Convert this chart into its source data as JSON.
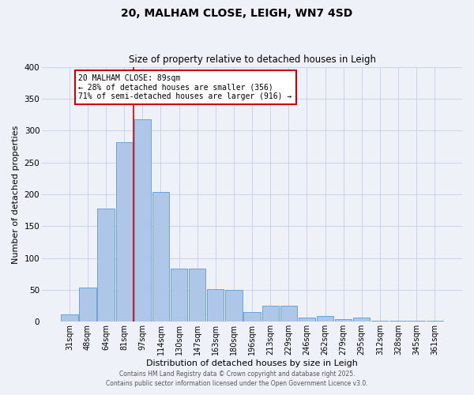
{
  "title": "20, MALHAM CLOSE, LEIGH, WN7 4SD",
  "subtitle": "Size of property relative to detached houses in Leigh",
  "xlabel": "Distribution of detached houses by size in Leigh",
  "ylabel": "Number of detached properties",
  "bar_labels": [
    "31sqm",
    "48sqm",
    "64sqm",
    "81sqm",
    "97sqm",
    "114sqm",
    "130sqm",
    "147sqm",
    "163sqm",
    "180sqm",
    "196sqm",
    "213sqm",
    "229sqm",
    "246sqm",
    "262sqm",
    "279sqm",
    "295sqm",
    "312sqm",
    "328sqm",
    "345sqm",
    "361sqm"
  ],
  "bar_values": [
    12,
    54,
    178,
    282,
    318,
    204,
    83,
    83,
    51,
    50,
    15,
    25,
    25,
    6,
    9,
    4,
    6,
    2,
    1,
    1,
    1
  ],
  "bar_color": "#aec6e8",
  "bar_edge_color": "#5b9bd5",
  "ylim": [
    0,
    400
  ],
  "yticks": [
    0,
    50,
    100,
    150,
    200,
    250,
    300,
    350,
    400
  ],
  "grid_color": "#c8d4e8",
  "bg_color": "#eef2f8",
  "vline_color": "#cc0000",
  "vline_x": 3.5,
  "annotation_text": "20 MALHAM CLOSE: 89sqm\n← 28% of detached houses are smaller (356)\n71% of semi-detached houses are larger (916) →",
  "annotation_box_color": "#ffffff",
  "annotation_box_edge": "#cc0000",
  "footer1": "Contains HM Land Registry data © Crown copyright and database right 2025.",
  "footer2": "Contains public sector information licensed under the Open Government Licence v3.0."
}
